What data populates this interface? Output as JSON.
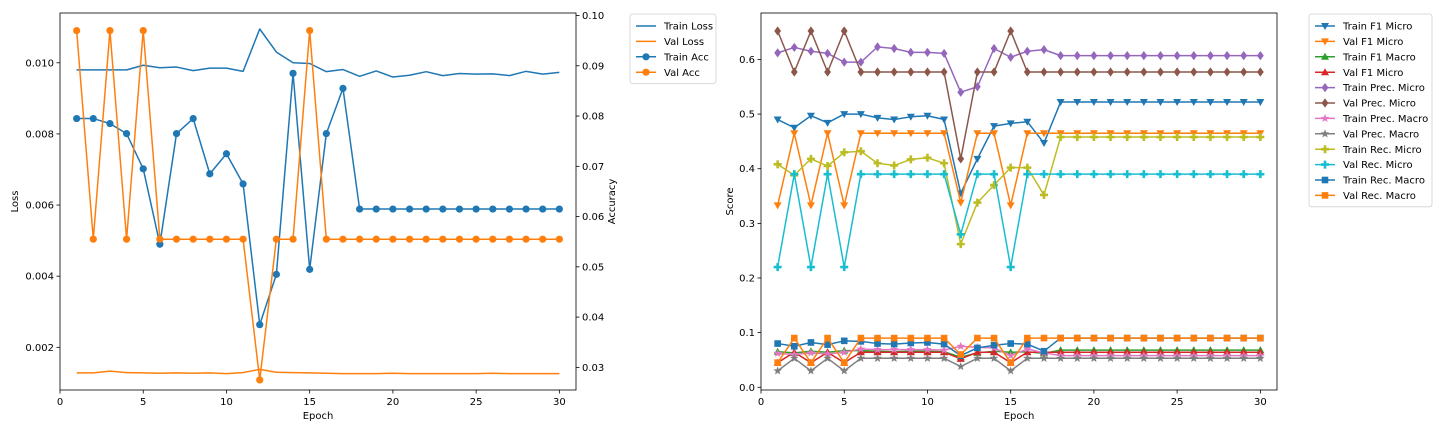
{
  "chart_data": [
    {
      "type": "line",
      "xlabel": "Epoch",
      "ylabel": "Loss",
      "y2label": "Accuracy",
      "xlim": [
        0,
        31
      ],
      "xticks": [
        0,
        5,
        10,
        15,
        20,
        25,
        30
      ],
      "ylim": [
        0.0008,
        0.0114
      ],
      "yticks": [
        0.002,
        0.004,
        0.006,
        0.008,
        0.01
      ],
      "ytick_labels": [
        "0.002",
        "0.004",
        "0.006",
        "0.008",
        "0.010"
      ],
      "y2lim": [
        0.0255,
        0.1005
      ],
      "y2ticks": [
        0.03,
        0.04,
        0.05,
        0.06,
        0.07,
        0.08,
        0.09,
        0.1
      ],
      "y2tick_labels": [
        "0.03",
        "0.04",
        "0.05",
        "0.06",
        "0.07",
        "0.08",
        "0.09",
        "0.10"
      ],
      "grid": false,
      "legend": "outside-right-top",
      "x": [
        1,
        2,
        3,
        4,
        5,
        6,
        7,
        8,
        9,
        10,
        11,
        12,
        13,
        14,
        15,
        16,
        17,
        18,
        19,
        20,
        21,
        22,
        23,
        24,
        25,
        26,
        27,
        28,
        29,
        30
      ],
      "series": [
        {
          "name": "Train Loss",
          "axis": "left",
          "color": "#1f77b4",
          "marker": "none",
          "values": [
            0.0098,
            0.0098,
            0.0098,
            0.0098,
            0.00993,
            0.00986,
            0.00988,
            0.00978,
            0.00985,
            0.00985,
            0.00976,
            0.01095,
            0.0103,
            0.01,
            0.00998,
            0.00975,
            0.00981,
            0.00962,
            0.00977,
            0.0096,
            0.00965,
            0.00975,
            0.00964,
            0.0097,
            0.00968,
            0.00969,
            0.00964,
            0.00976,
            0.00968,
            0.00973
          ]
        },
        {
          "name": "Val Loss",
          "axis": "left",
          "color": "#ff7f0e",
          "marker": "none",
          "values": [
            0.00128,
            0.00128,
            0.00133,
            0.00129,
            0.00128,
            0.00127,
            0.00128,
            0.00127,
            0.00128,
            0.00126,
            0.00129,
            0.00138,
            0.0013,
            0.00129,
            0.00128,
            0.00127,
            0.00126,
            0.00126,
            0.00126,
            0.00127,
            0.00126,
            0.00126,
            0.00126,
            0.00126,
            0.00126,
            0.00127,
            0.00126,
            0.00126,
            0.00126,
            0.00126
          ]
        },
        {
          "name": "Train Acc",
          "axis": "right",
          "color": "#1f77b4",
          "marker": "circle",
          "values": [
            0.0795,
            0.0795,
            0.0785,
            0.0765,
            0.0695,
            0.0545,
            0.0765,
            0.0795,
            0.0685,
            0.0725,
            0.0665,
            0.0385,
            0.0485,
            0.0885,
            0.0495,
            0.0765,
            0.0855,
            0.0615,
            0.0615,
            0.0615,
            0.0615,
            0.0615,
            0.0615,
            0.0615,
            0.0615,
            0.0615,
            0.0615,
            0.0615,
            0.0615,
            0.0615
          ]
        },
        {
          "name": "Val Acc",
          "axis": "right",
          "color": "#ff7f0e",
          "marker": "circle",
          "values": [
            0.097,
            0.0555,
            0.097,
            0.0555,
            0.097,
            0.0555,
            0.0555,
            0.0555,
            0.0555,
            0.0555,
            0.0555,
            0.0275,
            0.0555,
            0.0555,
            0.097,
            0.0555,
            0.0555,
            0.0555,
            0.0555,
            0.0555,
            0.0555,
            0.0555,
            0.0555,
            0.0555,
            0.0555,
            0.0555,
            0.0555,
            0.0555,
            0.0555,
            0.0555
          ]
        }
      ]
    },
    {
      "type": "line",
      "xlabel": "Epoch",
      "ylabel": "Score",
      "xlim": [
        0,
        31
      ],
      "xticks": [
        0,
        5,
        10,
        15,
        20,
        25,
        30
      ],
      "ylim": [
        -0.005,
        0.685
      ],
      "yticks": [
        0.0,
        0.1,
        0.2,
        0.3,
        0.4,
        0.5,
        0.6
      ],
      "ytick_labels": [
        "0.0",
        "0.1",
        "0.2",
        "0.3",
        "0.4",
        "0.5",
        "0.6"
      ],
      "grid": false,
      "legend": "outside-right-top",
      "x": [
        1,
        2,
        3,
        4,
        5,
        6,
        7,
        8,
        9,
        10,
        11,
        12,
        13,
        14,
        15,
        16,
        17,
        18,
        19,
        20,
        21,
        22,
        23,
        24,
        25,
        26,
        27,
        28,
        29,
        30
      ],
      "series": [
        {
          "name": "Train F1 Micro",
          "color": "#1f77b4",
          "marker": "tri_down",
          "values": [
            0.49,
            0.475,
            0.497,
            0.484,
            0.5,
            0.5,
            0.493,
            0.49,
            0.495,
            0.497,
            0.49,
            0.355,
            0.418,
            0.478,
            0.483,
            0.486,
            0.447,
            0.522,
            0.522,
            0.522,
            0.522,
            0.522,
            0.522,
            0.522,
            0.522,
            0.522,
            0.522,
            0.522,
            0.522,
            0.522
          ]
        },
        {
          "name": "Val F1 Micro",
          "color": "#ff7f0e",
          "marker": "tri_down",
          "values": [
            0.333,
            0.465,
            0.333,
            0.465,
            0.333,
            0.465,
            0.465,
            0.465,
            0.465,
            0.465,
            0.465,
            0.338,
            0.465,
            0.465,
            0.333,
            0.465,
            0.465,
            0.465,
            0.465,
            0.465,
            0.465,
            0.465,
            0.465,
            0.465,
            0.465,
            0.465,
            0.465,
            0.465,
            0.465,
            0.465
          ]
        },
        {
          "name": "Train F1 Macro",
          "color": "#2ca02c",
          "marker": "tri_up",
          "values": [
            0.065,
            0.063,
            0.066,
            0.064,
            0.067,
            0.067,
            0.066,
            0.065,
            0.066,
            0.066,
            0.065,
            0.055,
            0.063,
            0.066,
            0.064,
            0.065,
            0.062,
            0.068,
            0.068,
            0.068,
            0.068,
            0.068,
            0.068,
            0.068,
            0.068,
            0.068,
            0.068,
            0.068,
            0.068,
            0.068
          ]
        },
        {
          "name": "Val F1 Micro",
          "color": "#d62728",
          "marker": "tri_up",
          "values": [
            0.045,
            0.064,
            0.045,
            0.064,
            0.045,
            0.064,
            0.064,
            0.064,
            0.064,
            0.064,
            0.064,
            0.052,
            0.064,
            0.064,
            0.045,
            0.064,
            0.064,
            0.064,
            0.064,
            0.064,
            0.064,
            0.064,
            0.064,
            0.064,
            0.064,
            0.064,
            0.064,
            0.064,
            0.064,
            0.064
          ]
        },
        {
          "name": "Train Prec. Micro",
          "color": "#9467bd",
          "marker": "diamond",
          "values": [
            0.612,
            0.622,
            0.615,
            0.611,
            0.595,
            0.595,
            0.623,
            0.62,
            0.613,
            0.613,
            0.611,
            0.54,
            0.55,
            0.62,
            0.604,
            0.615,
            0.618,
            0.607,
            0.607,
            0.607,
            0.607,
            0.607,
            0.607,
            0.607,
            0.607,
            0.607,
            0.607,
            0.607,
            0.607,
            0.607
          ]
        },
        {
          "name": "Val Prec. Micro",
          "color": "#8c564b",
          "marker": "diamond",
          "values": [
            0.652,
            0.577,
            0.652,
            0.577,
            0.652,
            0.577,
            0.577,
            0.577,
            0.577,
            0.577,
            0.577,
            0.418,
            0.577,
            0.577,
            0.652,
            0.577,
            0.577,
            0.577,
            0.577,
            0.577,
            0.577,
            0.577,
            0.577,
            0.577,
            0.577,
            0.577,
            0.577,
            0.577,
            0.577,
            0.577
          ]
        },
        {
          "name": "Train Prec. Macro",
          "color": "#e377c2",
          "marker": "star",
          "values": [
            0.062,
            0.06,
            0.063,
            0.061,
            0.064,
            0.07,
            0.069,
            0.069,
            0.069,
            0.069,
            0.068,
            0.075,
            0.073,
            0.072,
            0.058,
            0.07,
            0.063,
            0.058,
            0.058,
            0.058,
            0.058,
            0.058,
            0.058,
            0.058,
            0.058,
            0.058,
            0.058,
            0.058,
            0.058,
            0.058
          ]
        },
        {
          "name": "Val Prec. Macro",
          "color": "#7f7f7f",
          "marker": "star",
          "values": [
            0.03,
            0.053,
            0.03,
            0.053,
            0.03,
            0.053,
            0.053,
            0.053,
            0.053,
            0.053,
            0.053,
            0.038,
            0.053,
            0.053,
            0.03,
            0.053,
            0.053,
            0.053,
            0.053,
            0.053,
            0.053,
            0.053,
            0.053,
            0.053,
            0.053,
            0.053,
            0.053,
            0.053,
            0.053,
            0.053
          ]
        },
        {
          "name": "Train Rec. Micro",
          "color": "#bcbd22",
          "marker": "plus",
          "values": [
            0.408,
            0.388,
            0.418,
            0.405,
            0.43,
            0.432,
            0.41,
            0.406,
            0.417,
            0.42,
            0.41,
            0.262,
            0.338,
            0.37,
            0.402,
            0.402,
            0.352,
            0.458,
            0.458,
            0.458,
            0.458,
            0.458,
            0.458,
            0.458,
            0.458,
            0.458,
            0.458,
            0.458,
            0.458,
            0.458
          ]
        },
        {
          "name": "Val Rec. Micro",
          "color": "#17becf",
          "marker": "plus",
          "values": [
            0.22,
            0.39,
            0.22,
            0.39,
            0.22,
            0.39,
            0.39,
            0.39,
            0.39,
            0.39,
            0.39,
            0.28,
            0.39,
            0.39,
            0.22,
            0.39,
            0.39,
            0.39,
            0.39,
            0.39,
            0.39,
            0.39,
            0.39,
            0.39,
            0.39,
            0.39,
            0.39,
            0.39,
            0.39,
            0.39
          ]
        },
        {
          "name": "Train Rec. Macro",
          "color": "#1f77b4",
          "marker": "square",
          "values": [
            0.08,
            0.075,
            0.082,
            0.078,
            0.085,
            0.084,
            0.08,
            0.079,
            0.081,
            0.082,
            0.079,
            0.058,
            0.072,
            0.077,
            0.08,
            0.079,
            0.066,
            0.09,
            0.09,
            0.09,
            0.09,
            0.09,
            0.09,
            0.09,
            0.09,
            0.09,
            0.09,
            0.09,
            0.09,
            0.09
          ]
        },
        {
          "name": "Val Rec. Macro",
          "color": "#ff7f0e",
          "marker": "square",
          "values": [
            0.045,
            0.09,
            0.045,
            0.09,
            0.045,
            0.09,
            0.09,
            0.09,
            0.09,
            0.09,
            0.09,
            0.06,
            0.09,
            0.09,
            0.045,
            0.09,
            0.09,
            0.09,
            0.09,
            0.09,
            0.09,
            0.09,
            0.09,
            0.09,
            0.09,
            0.09,
            0.09,
            0.09,
            0.09,
            0.09
          ]
        }
      ]
    }
  ]
}
